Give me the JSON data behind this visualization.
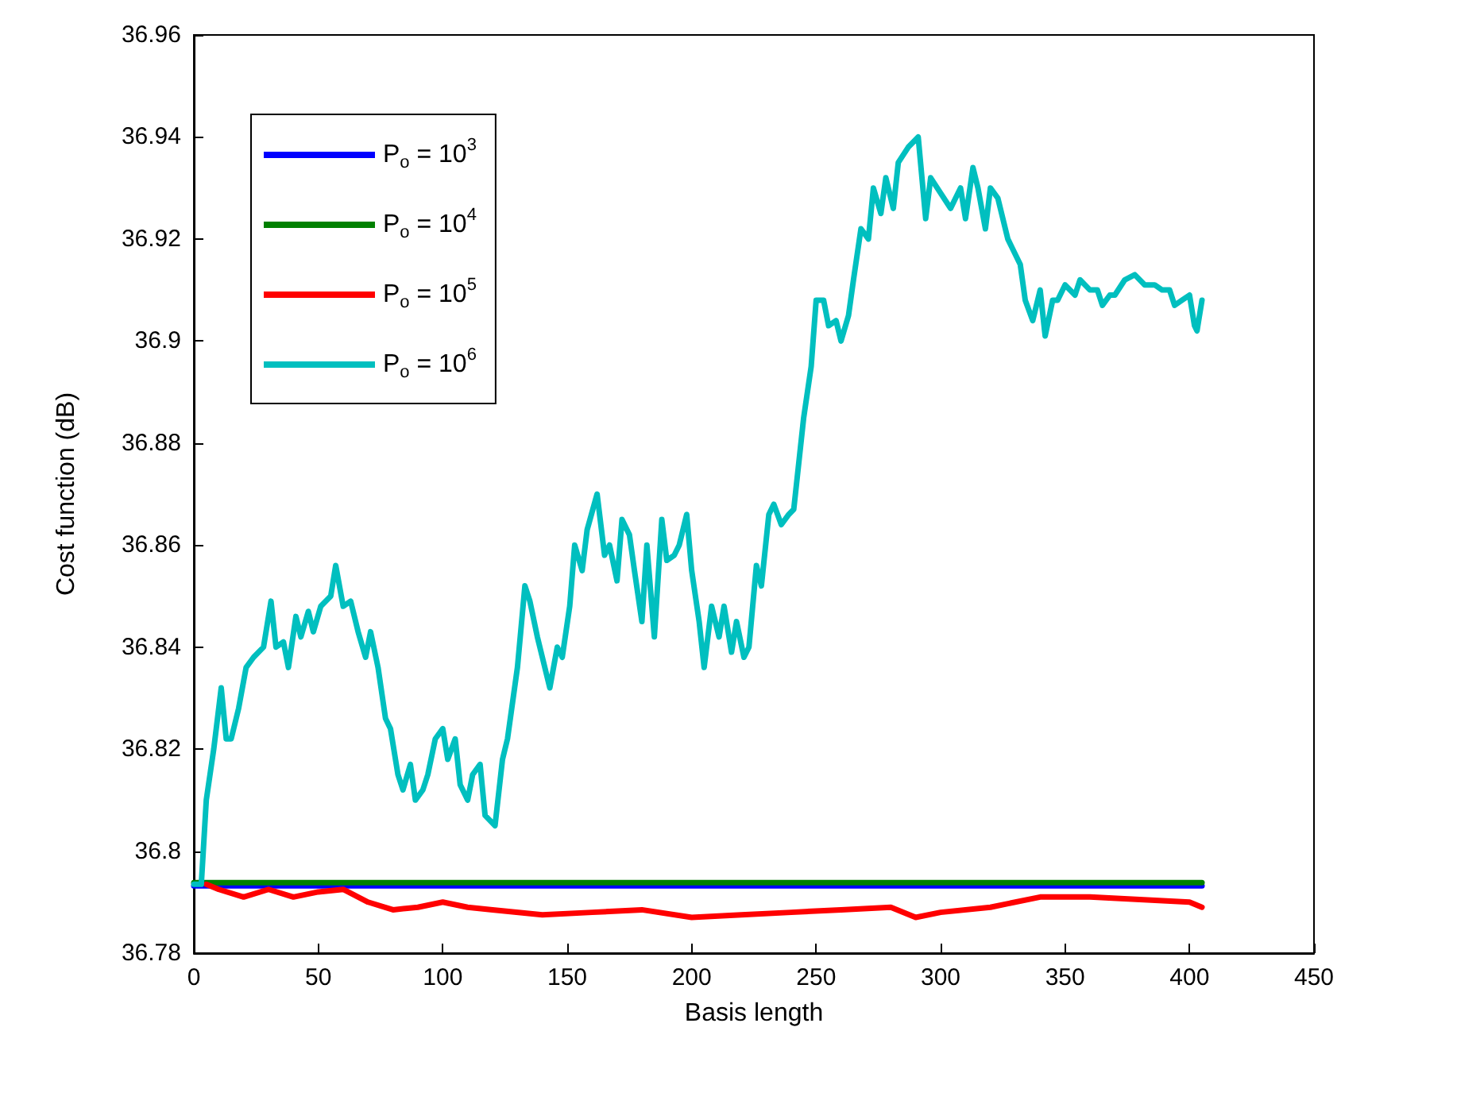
{
  "chart_data": {
    "type": "line",
    "xlabel": "Basis length",
    "ylabel": "Cost function (dB)",
    "xlim": [
      0,
      450
    ],
    "xticks": [
      0,
      50,
      100,
      150,
      200,
      250,
      300,
      350,
      400,
      450
    ],
    "ylim": [
      36.78,
      36.96
    ],
    "yticks": [
      36.78,
      36.8,
      36.82,
      36.84,
      36.86,
      36.88,
      36.9,
      36.92,
      36.94,
      36.96
    ],
    "grid": false,
    "legend": "top left",
    "marker": "none",
    "line_style": "solid",
    "series": [
      {
        "name": "P$_{o}$ = 10$^{3}$",
        "color": "#0000ff",
        "x": [
          0,
          405
        ],
        "values": [
          36.7932,
          36.7932
        ]
      },
      {
        "name": "P$_{o}$ = 10$^{4}$",
        "color": "#008000",
        "x": [
          0,
          405
        ],
        "values": [
          36.7938,
          36.7938
        ]
      },
      {
        "name": "P$_{o}$ = 10$^{5}$",
        "color": "#ff0000",
        "x": [
          5,
          10,
          20,
          30,
          40,
          50,
          60,
          70,
          80,
          90,
          100,
          110,
          120,
          140,
          160,
          180,
          200,
          220,
          240,
          260,
          280,
          290,
          300,
          320,
          340,
          360,
          380,
          400,
          405
        ],
        "values": [
          36.7935,
          36.7925,
          36.791,
          36.7925,
          36.791,
          36.792,
          36.7925,
          36.79,
          36.7885,
          36.789,
          36.79,
          36.789,
          36.7885,
          36.7875,
          36.788,
          36.7885,
          36.787,
          36.7875,
          36.788,
          36.7885,
          36.789,
          36.787,
          36.788,
          36.789,
          36.791,
          36.791,
          36.7905,
          36.79,
          36.789
        ]
      },
      {
        "name": "P$_{o}$ = 10$^{6}$",
        "color": "#00bfbf",
        "x": [
          0,
          3,
          5,
          8,
          11,
          13,
          15,
          18,
          21,
          24,
          28,
          31,
          33,
          36,
          38,
          41,
          43,
          46,
          48,
          51,
          55,
          57,
          60,
          63,
          66,
          69,
          71,
          74,
          77,
          79,
          82,
          84,
          87,
          89,
          92,
          94,
          97,
          100,
          102,
          105,
          107,
          110,
          112,
          115,
          117,
          121,
          124,
          126,
          130,
          133,
          135,
          138,
          140,
          143,
          146,
          148,
          151,
          153,
          156,
          158,
          162,
          165,
          167,
          170,
          172,
          175,
          177,
          180,
          182,
          185,
          188,
          190,
          193,
          195,
          198,
          200,
          203,
          205,
          208,
          211,
          213,
          216,
          218,
          221,
          223,
          226,
          228,
          231,
          233,
          236,
          239,
          241,
          245,
          248,
          250,
          253,
          255,
          258,
          260,
          263,
          265,
          268,
          271,
          273,
          276,
          278,
          281,
          283,
          287,
          291,
          294,
          296,
          300,
          304,
          308,
          310,
          313,
          315,
          318,
          320,
          323,
          327,
          329,
          332,
          334,
          337,
          340,
          342,
          345,
          347,
          350,
          354,
          356,
          360,
          363,
          365,
          368,
          370,
          374,
          378,
          382,
          386,
          389,
          392,
          394,
          397,
          400,
          402,
          403,
          405
        ],
        "values": [
          36.7935,
          36.7935,
          36.81,
          36.82,
          36.832,
          36.822,
          36.822,
          36.828,
          36.836,
          36.838,
          36.84,
          36.849,
          36.84,
          36.841,
          36.836,
          36.846,
          36.842,
          36.847,
          36.843,
          36.848,
          36.85,
          36.856,
          36.848,
          36.849,
          36.843,
          36.838,
          36.843,
          36.836,
          36.826,
          36.824,
          36.815,
          36.812,
          36.817,
          36.81,
          36.812,
          36.815,
          36.822,
          36.824,
          36.818,
          36.822,
          36.813,
          36.81,
          36.815,
          36.817,
          36.807,
          36.805,
          36.818,
          36.822,
          36.836,
          36.852,
          36.849,
          36.842,
          36.838,
          36.832,
          36.84,
          36.838,
          36.848,
          36.86,
          36.855,
          36.863,
          36.87,
          36.858,
          36.86,
          36.853,
          36.865,
          36.862,
          36.855,
          36.845,
          36.86,
          36.842,
          36.865,
          36.857,
          36.858,
          36.86,
          36.866,
          36.855,
          36.845,
          36.836,
          36.848,
          36.842,
          36.848,
          36.839,
          36.845,
          36.838,
          36.84,
          36.856,
          36.852,
          36.866,
          36.868,
          36.864,
          36.866,
          36.867,
          36.885,
          36.895,
          36.908,
          36.908,
          36.903,
          36.904,
          36.9,
          36.905,
          36.912,
          36.922,
          36.92,
          36.93,
          36.925,
          36.932,
          36.926,
          36.935,
          36.938,
          36.94,
          36.924,
          36.932,
          36.929,
          36.926,
          36.93,
          36.924,
          36.934,
          36.93,
          36.922,
          36.93,
          36.928,
          36.92,
          36.918,
          36.915,
          36.908,
          36.904,
          36.91,
          36.901,
          36.908,
          36.908,
          36.911,
          36.909,
          36.912,
          36.91,
          36.91,
          36.907,
          36.909,
          36.909,
          36.912,
          36.913,
          36.911,
          36.911,
          36.91,
          36.91,
          36.907,
          36.908,
          36.909,
          36.903,
          36.902,
          36.908
        ]
      }
    ]
  }
}
